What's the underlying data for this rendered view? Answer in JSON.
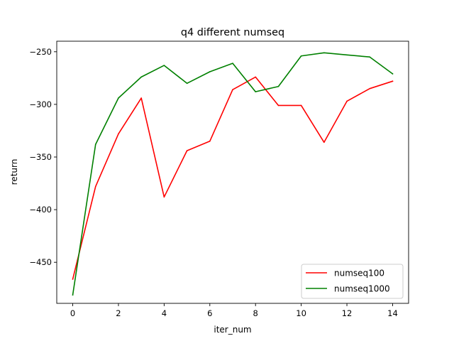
{
  "chart_data": {
    "type": "line",
    "title": "q4 different numseq",
    "xlabel": "iter_num",
    "ylabel": "return",
    "xlim": [
      -0.7,
      14.7
    ],
    "ylim": [
      -489,
      -240
    ],
    "xticks": [
      0,
      2,
      4,
      6,
      8,
      10,
      12,
      14
    ],
    "xtick_labels": [
      "0",
      "2",
      "4",
      "6",
      "8",
      "10",
      "12",
      "14"
    ],
    "yticks": [
      -450,
      -400,
      -350,
      -300,
      -250
    ],
    "ytick_labels": [
      "−450",
      "−400",
      "−350",
      "−300",
      "−250"
    ],
    "grid": false,
    "legend_position": "lower-right",
    "x": [
      0,
      1,
      2,
      3,
      4,
      5,
      6,
      7,
      8,
      9,
      10,
      11,
      12,
      13,
      14
    ],
    "series": [
      {
        "name": "numseq100",
        "color": "#ff0000",
        "values": [
          -466,
          -378,
          -328,
          -294,
          -388,
          -344,
          -335,
          -286,
          -274,
          -301,
          -301,
          -336,
          -297,
          -285,
          -278
        ]
      },
      {
        "name": "numseq1000",
        "color": "#008000",
        "values": [
          -481,
          -338,
          -294,
          -274,
          -263,
          -280,
          -269,
          -261,
          -288,
          -283,
          -254,
          -251,
          -253,
          -255,
          -271
        ]
      }
    ]
  }
}
